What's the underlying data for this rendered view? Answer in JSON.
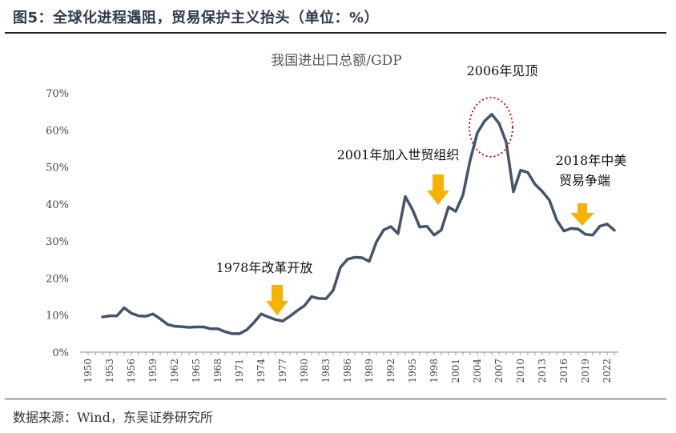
{
  "figure": {
    "title": "图5：全球化进程遇阻，贸易保护主义抬头（单位：%）",
    "source": "数据来源：Wind，东吴证券研究所"
  },
  "colors": {
    "line": "#44546a",
    "arrow": "#f5b200",
    "circle": "#c00000",
    "axis": "#888888",
    "text": "#444444"
  },
  "chart_data": {
    "type": "line",
    "title": "我国进出口总额/GDP",
    "xlabel": "",
    "ylabel": "",
    "x_tick_labels": [
      "1950",
      "1953",
      "1956",
      "1959",
      "1962",
      "1965",
      "1968",
      "1971",
      "1974",
      "1977",
      "1980",
      "1983",
      "1986",
      "1989",
      "1992",
      "1995",
      "1998",
      "2001",
      "2004",
      "2007",
      "2010",
      "2013",
      "2016",
      "2019",
      "2022"
    ],
    "y_tick_labels": [
      "0%",
      "10%",
      "20%",
      "30%",
      "40%",
      "50%",
      "60%",
      "70%"
    ],
    "ylim": [
      0,
      70
    ],
    "xlim": [
      1950,
      2023
    ],
    "grid": false,
    "series": [
      {
        "x": [
          1952,
          1953,
          1954,
          1955,
          1956,
          1957,
          1958,
          1959,
          1960,
          1961,
          1962,
          1963,
          1964,
          1965,
          1966,
          1967,
          1968,
          1969,
          1970,
          1971,
          1972,
          1973,
          1974,
          1975,
          1976,
          1977,
          1978,
          1979,
          1980,
          1981,
          1982,
          1983,
          1984,
          1985,
          1986,
          1987,
          1988,
          1989,
          1990,
          1991,
          1992,
          1993,
          1994,
          1995,
          1996,
          1997,
          1998,
          1999,
          2000,
          2001,
          2002,
          2003,
          2004,
          2005,
          2006,
          2007,
          2008,
          2009,
          2010,
          2011,
          2012,
          2013,
          2014,
          2015,
          2016,
          2017,
          2018,
          2019,
          2020,
          2021,
          2022,
          2023
        ],
        "values": [
          9.5,
          9.8,
          9.8,
          12.0,
          10.5,
          9.8,
          9.7,
          10.3,
          9.0,
          7.5,
          7.0,
          6.9,
          6.7,
          6.8,
          6.8,
          6.3,
          6.3,
          5.5,
          5.0,
          5.0,
          6.0,
          8.0,
          10.3,
          9.5,
          8.8,
          8.4,
          9.7,
          11.2,
          12.5,
          15.0,
          14.5,
          14.4,
          16.7,
          22.9,
          25.1,
          25.6,
          25.5,
          24.5,
          29.8,
          33.0,
          33.9,
          32.0,
          42.0,
          38.5,
          33.8,
          34.0,
          31.6,
          33.0,
          39.2,
          38.0,
          42.4,
          51.8,
          59.2,
          62.4,
          64.2,
          61.8,
          56.7,
          43.3,
          49.1,
          48.5,
          45.3,
          43.4,
          41.0,
          35.7,
          32.7,
          33.4,
          33.2,
          31.8,
          31.6,
          34.0,
          34.6,
          32.9
        ]
      }
    ],
    "annotations": [
      {
        "text": "1978年改革开放",
        "x": 1978,
        "kind": "arrow"
      },
      {
        "text": "2001年加入世贸组织",
        "x": 2001,
        "kind": "arrow"
      },
      {
        "text": "2006年见顶",
        "x": 2006,
        "kind": "circle"
      },
      {
        "text": "2018年中美",
        "text2": "贸易争端",
        "x": 2018,
        "kind": "arrow"
      }
    ]
  }
}
